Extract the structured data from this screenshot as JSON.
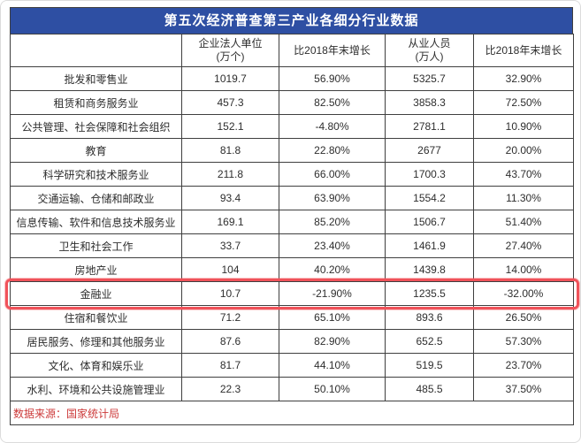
{
  "title": "第五次经济普查第三产业各细分行业数据",
  "source_note": "数据来源：国家统计局",
  "colors": {
    "title_bg": "#2E4FA3",
    "title_text": "#FFFFFF",
    "table_border": "#3F3F3F",
    "cell_text": "#2E2E2E",
    "highlight_border": "#F0525A",
    "source_text": "#CC3A3A"
  },
  "chart_data": {
    "type": "table",
    "title": "第五次经济普查第三产业各细分行业数据",
    "columns": [
      {
        "label": ""
      },
      {
        "label": "企业法人单位\n(万个)"
      },
      {
        "label": "比2018年末增长"
      },
      {
        "label": "从业人员\n(万人)"
      },
      {
        "label": "比2018年末增长"
      }
    ],
    "rows": [
      {
        "industry": "批发和零售业",
        "units": "1019.7",
        "units_growth": "56.90%",
        "employees": "5325.7",
        "employees_growth": "32.90%",
        "highlight": false
      },
      {
        "industry": "租赁和商务服务业",
        "units": "457.3",
        "units_growth": "82.50%",
        "employees": "3858.3",
        "employees_growth": "72.50%",
        "highlight": false
      },
      {
        "industry": "公共管理、社会保障和社会组织",
        "units": "152.1",
        "units_growth": "-4.80%",
        "employees": "2781.1",
        "employees_growth": "10.90%",
        "highlight": false
      },
      {
        "industry": "教育",
        "units": "81.8",
        "units_growth": "22.80%",
        "employees": "2677",
        "employees_growth": "20.00%",
        "highlight": false
      },
      {
        "industry": "科学研究和技术服务业",
        "units": "211.8",
        "units_growth": "66.00%",
        "employees": "1700.3",
        "employees_growth": "43.70%",
        "highlight": false
      },
      {
        "industry": "交通运输、仓储和邮政业",
        "units": "93.4",
        "units_growth": "63.90%",
        "employees": "1554.2",
        "employees_growth": "11.30%",
        "highlight": false
      },
      {
        "industry": "信息传输、软件和信息技术服务业",
        "units": "169.1",
        "units_growth": "85.20%",
        "employees": "1506.7",
        "employees_growth": "51.40%",
        "highlight": false
      },
      {
        "industry": "卫生和社会工作",
        "units": "33.7",
        "units_growth": "23.40%",
        "employees": "1461.9",
        "employees_growth": "27.40%",
        "highlight": false
      },
      {
        "industry": "房地产业",
        "units": "104",
        "units_growth": "40.20%",
        "employees": "1439.8",
        "employees_growth": "14.00%",
        "highlight": false
      },
      {
        "industry": "金融业",
        "units": "10.7",
        "units_growth": "-21.90%",
        "employees": "1235.5",
        "employees_growth": "-32.00%",
        "highlight": true
      },
      {
        "industry": "住宿和餐饮业",
        "units": "71.2",
        "units_growth": "65.10%",
        "employees": "893.6",
        "employees_growth": "26.50%",
        "highlight": false
      },
      {
        "industry": "居民服务、修理和其他服务业",
        "units": "87.6",
        "units_growth": "82.90%",
        "employees": "652.5",
        "employees_growth": "57.30%",
        "highlight": false
      },
      {
        "industry": "文化、体育和娱乐业",
        "units": "81.7",
        "units_growth": "44.10%",
        "employees": "519.5",
        "employees_growth": "23.70%",
        "highlight": false
      },
      {
        "industry": "水利、环境和公共设施管理业",
        "units": "22.3",
        "units_growth": "50.10%",
        "employees": "485.5",
        "employees_growth": "37.50%",
        "highlight": false
      }
    ],
    "source_note": "数据来源：国家统计局",
    "highlighted_row": "金融业"
  }
}
